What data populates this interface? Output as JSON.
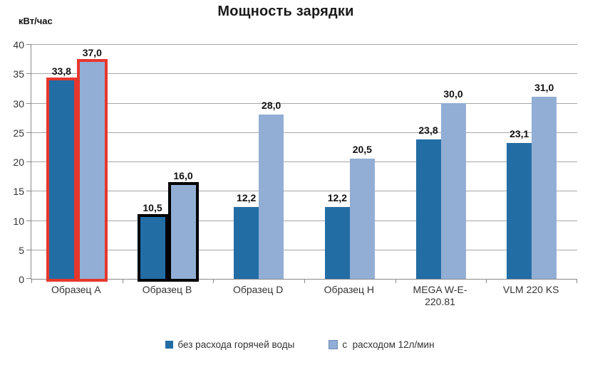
{
  "chart_data": {
    "type": "bar",
    "title": "Мощность зарядки",
    "ylabel": "кВт/час",
    "xlabel": "",
    "ylim": [
      0,
      40
    ],
    "yticks": [
      0,
      5,
      10,
      15,
      20,
      25,
      30,
      35,
      40
    ],
    "grid": true,
    "legend_position": "bottom",
    "categories": [
      "Образец A",
      "Образец B",
      "Образец D",
      "Образец H",
      "MEGA W-E-220.81",
      "VLM 220 KS"
    ],
    "series": [
      {
        "name": "без расхода горячей воды",
        "color": "#236DA5",
        "values": [
          33.8,
          10.5,
          12.2,
          12.2,
          23.8,
          23.1
        ],
        "value_labels": [
          "33,8",
          "10,5",
          "12,2",
          "12,2",
          "23,8",
          "23,1"
        ]
      },
      {
        "name": "с  расходом 12л/мин",
        "color": "#92AED5",
        "swatch_border": "#6B8CB8",
        "values": [
          37.0,
          16.0,
          28.0,
          20.5,
          30.0,
          31.0
        ],
        "value_labels": [
          "37,0",
          "16,0",
          "28,0",
          "20,5",
          "30,0",
          "31,0"
        ]
      }
    ],
    "highlights": [
      {
        "category_index": 0,
        "outline_color": "#E7372D"
      },
      {
        "category_index": 1,
        "outline_color": "#000000"
      }
    ],
    "colors": {
      "gridline": "#A6A6A6",
      "axis": "#898989",
      "tick_text": "#333333",
      "value_label_text": "#111111"
    }
  }
}
